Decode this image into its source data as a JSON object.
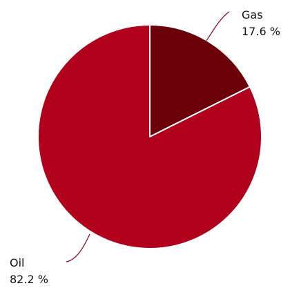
{
  "chart_data": {
    "type": "pie",
    "title": "",
    "start_angle_deg": 0,
    "direction": "clockwise",
    "slices": [
      {
        "name": "Gas",
        "value": 17.6,
        "label": "17.6 %",
        "color": "#6b0009"
      },
      {
        "name": "Oil",
        "value": 82.2,
        "label": "82.2 %",
        "color": "#b0001c"
      }
    ],
    "legend": "none"
  }
}
